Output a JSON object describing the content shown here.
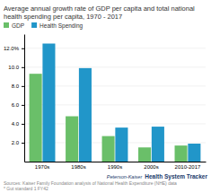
{
  "chart_data": {
    "type": "bar",
    "title": "Average annual growth rate of GDP per capita and total national health spending per capita, 1970 - 2017",
    "categories": [
      "1970s",
      "1980s",
      "1990s",
      "2000s",
      "2010-2017"
    ],
    "series": [
      {
        "name": "GDP",
        "color": "#6abf69",
        "values": [
          9.3,
          4.8,
          2.7,
          1.5,
          1.7
        ]
      },
      {
        "name": "Health Spending",
        "color": "#2196c9",
        "values": [
          12.5,
          9.9,
          3.6,
          3.7,
          1.9
        ]
      }
    ],
    "ylim": [
      0,
      13.5
    ],
    "yticks": [
      {
        "value": 2.0,
        "label": "2.0"
      },
      {
        "value": 4.0,
        "label": "4.0"
      },
      {
        "value": 6.0,
        "label": "6.0"
      },
      {
        "value": 8.0,
        "label": "8.0"
      },
      {
        "value": 10.0,
        "label": "10.0"
      },
      {
        "value": 12.0,
        "label": "12.0%"
      }
    ],
    "grid": true,
    "legend": "top-left",
    "annotations": [
      "Sources: Kaiser Family Foundation analysis of National Health Expenditure (NHE) data\n* Gut standard 1 FY42",
      "Peterson-Kaiser",
      "Health System Tracker"
    ]
  }
}
